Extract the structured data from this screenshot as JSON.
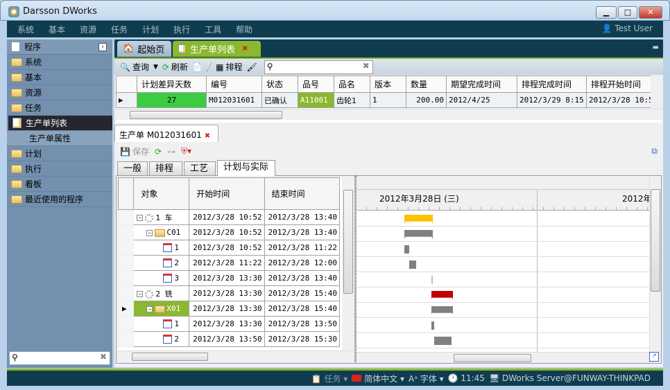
{
  "window": {
    "title": "Darsson DWorks",
    "min": "▁",
    "max": "□",
    "close": "✕"
  },
  "menu": [
    "系统",
    "基本",
    "资源",
    "任务",
    "计划",
    "执行",
    "工具",
    "帮助"
  ],
  "user": "Test User",
  "sidebar": {
    "header": "程序",
    "items": [
      {
        "label": "系统",
        "type": "folder"
      },
      {
        "label": "基本",
        "type": "folder"
      },
      {
        "label": "资源",
        "type": "folder"
      },
      {
        "label": "任务",
        "type": "folder"
      },
      {
        "label": "生产单列表",
        "type": "doc",
        "selected": true
      },
      {
        "label": "生产单属性",
        "type": "sub"
      },
      {
        "label": "计划",
        "type": "folder"
      },
      {
        "label": "执行",
        "type": "folder"
      },
      {
        "label": "看板",
        "type": "folder"
      },
      {
        "label": "最近使用的程序",
        "type": "folder"
      }
    ],
    "search_value": ""
  },
  "tabs": [
    {
      "label": "起始页"
    },
    {
      "label": "生产单列表",
      "active": true
    }
  ],
  "toolbar": {
    "query": "查询",
    "refresh": "刷新",
    "schedule": "排程",
    "search_value": ""
  },
  "orders": {
    "columns": [
      "计划差异天数",
      "编号",
      "状态",
      "品号",
      "品名",
      "版本",
      "数量",
      "期望完成时间",
      "排程完成时间",
      "排程开始时间"
    ],
    "rows": [
      [
        "27",
        "M012031601",
        "已确认",
        "A11001",
        "齿轮1",
        "1",
        "200.00",
        "2012/4/25",
        "2012/3/29 8:15",
        "2012/3/28 10:52"
      ]
    ]
  },
  "detail": {
    "tab": "生产单  M012031601",
    "save": "保存",
    "subtabs": [
      "一般",
      "排程",
      "工艺",
      "计划与实际"
    ],
    "active_subtab": 3,
    "columns": [
      "对象",
      "开始时间",
      "结束时间"
    ],
    "rows": [
      {
        "obj": "1 车",
        "kind": "gear",
        "level": 0,
        "start": "2012/3/28 10:52",
        "end": "2012/3/28 13:40",
        "color": "#ffc000"
      },
      {
        "obj": "C01",
        "kind": "folder",
        "level": 1,
        "start": "2012/3/28 10:52",
        "end": "2012/3/28 13:40",
        "color": "#808080"
      },
      {
        "obj": "1",
        "kind": "op",
        "level": 2,
        "start": "2012/3/28 10:52",
        "end": "2012/3/28 11:22",
        "color": "#808080"
      },
      {
        "obj": "2",
        "kind": "op",
        "level": 2,
        "start": "2012/3/28 11:22",
        "end": "2012/3/28 12:00",
        "color": "#808080"
      },
      {
        "obj": "3",
        "kind": "op",
        "level": 2,
        "start": "2012/3/28 13:30",
        "end": "2012/3/28 13:40",
        "color": "#c0c0c0"
      },
      {
        "obj": "2 铣",
        "kind": "gear",
        "level": 0,
        "start": "2012/3/28 13:30",
        "end": "2012/3/28 15:40",
        "color": "#c00000"
      },
      {
        "obj": "X01",
        "kind": "folder",
        "level": 1,
        "start": "2012/3/28 13:30",
        "end": "2012/3/28 15:40",
        "color": "#808080",
        "selected": true
      },
      {
        "obj": "1",
        "kind": "op",
        "level": 2,
        "start": "2012/3/28 13:30",
        "end": "2012/3/28 13:50",
        "color": "#808080"
      },
      {
        "obj": "2",
        "kind": "op",
        "level": 2,
        "start": "2012/3/28 13:50",
        "end": "2012/3/28 15:30",
        "color": "#808080"
      }
    ],
    "gantt_dates": [
      "2012年3月28日 (三)",
      "2012年"
    ]
  },
  "status": {
    "tasks": "任务",
    "language": "简体中文",
    "font": "字体",
    "time": "11:45",
    "server": "DWorks Server@FUNWAY-THINKPAD"
  }
}
